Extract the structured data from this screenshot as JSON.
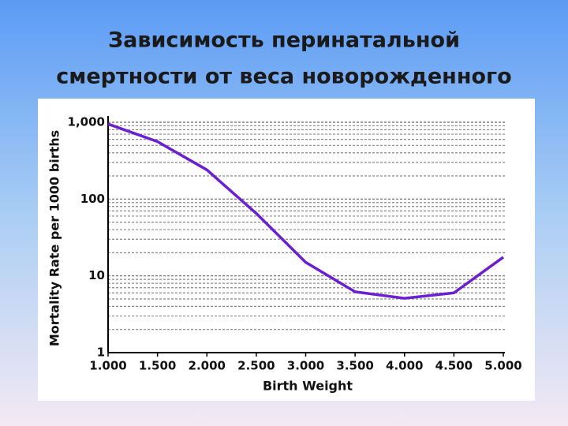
{
  "chart_data": {
    "type": "line",
    "title": [
      "Зависимость перинатальной",
      "смертности от веса новорожденного"
    ],
    "x_label": "Birth Weight",
    "y_label": "Mortality Rate per 1000 births",
    "x": [
      1.0,
      1.5,
      2.0,
      2.5,
      3.0,
      3.5,
      4.0,
      4.5,
      5.0
    ],
    "series": [
      {
        "color": "#6a1fd0",
        "values": [
          950,
          560,
          240,
          65,
          15,
          6.2,
          5.1,
          6.0,
          17.5
        ]
      }
    ],
    "xlim": [
      1,
      5
    ],
    "ylim": [
      1,
      1000
    ],
    "log_y": true,
    "grid": true,
    "xticks": [
      {
        "value": 1,
        "label": "1.000"
      },
      {
        "value": 1.5,
        "label": "1.500"
      },
      {
        "value": 2,
        "label": "2.000"
      },
      {
        "value": 2.5,
        "label": "2.500"
      },
      {
        "value": 3,
        "label": "3.000"
      },
      {
        "value": 3.5,
        "label": "3.500"
      },
      {
        "value": 4,
        "label": "4.000"
      },
      {
        "value": 4.5,
        "label": "4.500"
      },
      {
        "value": 5,
        "label": "5.000"
      }
    ],
    "yticks": [
      1,
      10,
      100,
      {
        "value": 1000,
        "label": "1,000"
      }
    ]
  }
}
